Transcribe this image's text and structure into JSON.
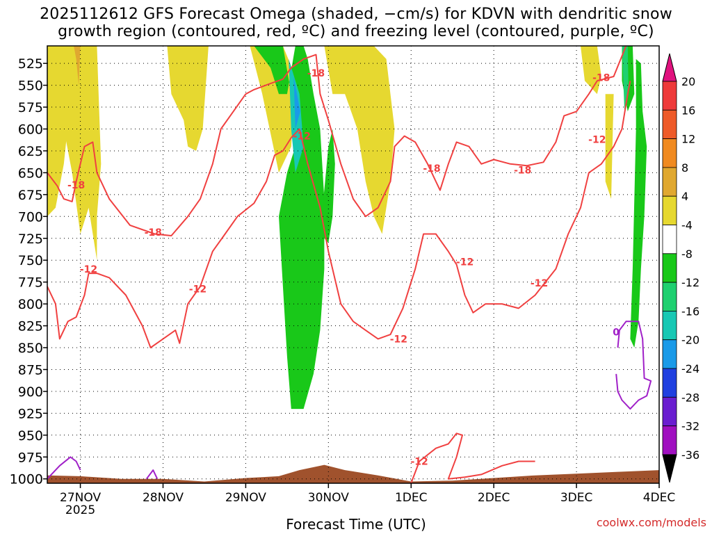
{
  "title_line1": "2025112612 GFS Forecast Omega (shaded, −cm/s) for KDVN with dendritic snow",
  "title_line2": "growth region (contoured, red, ºC) and freezing level (contoured, purple, ºC)",
  "xlabel": "Forecast Time (UTC)",
  "credit": "coolwx.com/models",
  "chart_data": {
    "type": "heatmap",
    "title": "2025112612 GFS Forecast Omega (shaded, −cm/s) for KDVN with dendritic snow growth region (contoured, red, ºC) and freezing level (contoured, purple, ºC)",
    "xlabel": "Forecast Time (UTC)",
    "ylabel": "",
    "x_ticks": [
      "27NOV",
      "28NOV",
      "29NOV",
      "30NOV",
      "1DEC",
      "2DEC",
      "3DEC",
      "4DEC"
    ],
    "x_tick_sub": [
      "2025",
      "",
      "",
      "",
      "",
      "",
      "",
      ""
    ],
    "y_ticks": [
      525,
      550,
      575,
      600,
      625,
      650,
      675,
      700,
      725,
      750,
      775,
      800,
      825,
      850,
      875,
      900,
      925,
      950,
      975,
      1000
    ],
    "ylim": [
      1005,
      505
    ],
    "xlim": [
      -0.4,
      7.0
    ],
    "grid": true,
    "colorbar": {
      "labels": [
        20,
        16,
        12,
        8,
        4,
        -4,
        -8,
        -12,
        -16,
        -20,
        -24,
        -28,
        -32,
        -36
      ],
      "colors": [
        "#e0127e",
        "#ee3a3a",
        "#ee5a28",
        "#f08a20",
        "#e0a830",
        "#e6d830",
        "#ffffff",
        "#19c819",
        "#1fd070",
        "#18c8b4",
        "#1a9ae8",
        "#2040e0",
        "#6a1ed0",
        "#a010c0",
        "#a8a8a8",
        "#000000"
      ]
    },
    "omega_regions": [
      {
        "color": "#e6d830",
        "pts": [
          [
            -0.4,
            505
          ],
          [
            -0.05,
            505
          ],
          [
            -0.2,
            640
          ],
          [
            -0.3,
            690
          ],
          [
            -0.4,
            700
          ]
        ]
      },
      {
        "color": "#e6d830",
        "pts": [
          [
            -0.25,
            505
          ],
          [
            0.2,
            505
          ],
          [
            0.25,
            640
          ],
          [
            0.2,
            700
          ],
          [
            0.2,
            750
          ],
          [
            0.1,
            690
          ],
          [
            0.0,
            720
          ],
          [
            -0.1,
            650
          ],
          [
            -0.2,
            600
          ]
        ]
      },
      {
        "color": "#e0a830",
        "pts": [
          [
            -0.08,
            505
          ],
          [
            0.0,
            505
          ],
          [
            -0.02,
            550
          ],
          [
            -0.05,
            520
          ]
        ]
      },
      {
        "color": "#e6d830",
        "pts": [
          [
            1.05,
            505
          ],
          [
            1.55,
            505
          ],
          [
            1.48,
            600
          ],
          [
            1.4,
            625
          ],
          [
            1.3,
            620
          ],
          [
            1.25,
            590
          ],
          [
            1.1,
            560
          ]
        ]
      },
      {
        "color": "#e6d830",
        "pts": [
          [
            2.05,
            505
          ],
          [
            2.45,
            505
          ],
          [
            2.6,
            540
          ],
          [
            2.55,
            620
          ],
          [
            2.4,
            650
          ],
          [
            2.2,
            560
          ]
        ]
      },
      {
        "color": "#19c819",
        "pts": [
          [
            2.1,
            505
          ],
          [
            2.45,
            505
          ],
          [
            2.55,
            560
          ],
          [
            2.6,
            620
          ],
          [
            2.5,
            650
          ],
          [
            2.4,
            700
          ],
          [
            2.45,
            780
          ],
          [
            2.5,
            860
          ],
          [
            2.55,
            920
          ],
          [
            2.7,
            920
          ],
          [
            2.82,
            880
          ],
          [
            2.9,
            830
          ],
          [
            2.95,
            760
          ],
          [
            2.95,
            680
          ],
          [
            2.9,
            600
          ],
          [
            2.82,
            560
          ],
          [
            2.75,
            520
          ],
          [
            2.7,
            505
          ],
          [
            2.6,
            505
          ],
          [
            2.5,
            560
          ],
          [
            2.4,
            560
          ],
          [
            2.3,
            530
          ]
        ]
      },
      {
        "color": "#18c8b4",
        "pts": [
          [
            2.52,
            520
          ],
          [
            2.65,
            560
          ],
          [
            2.7,
            620
          ],
          [
            2.6,
            650
          ],
          [
            2.55,
            600
          ]
        ]
      },
      {
        "color": "#1a9ae8",
        "pts": [
          [
            2.58,
            540
          ],
          [
            2.66,
            580
          ],
          [
            2.6,
            600
          ]
        ]
      },
      {
        "color": "#19c819",
        "pts": [
          [
            2.9,
            720
          ],
          [
            3.0,
            730
          ],
          [
            3.05,
            700
          ],
          [
            3.08,
            640
          ],
          [
            3.05,
            600
          ],
          [
            3.0,
            620
          ]
        ]
      },
      {
        "color": "#e6d830",
        "pts": [
          [
            2.95,
            505
          ],
          [
            3.55,
            505
          ],
          [
            3.7,
            520
          ],
          [
            3.75,
            560
          ],
          [
            3.8,
            600
          ],
          [
            3.75,
            660
          ],
          [
            3.65,
            720
          ],
          [
            3.55,
            700
          ],
          [
            3.45,
            660
          ],
          [
            3.35,
            600
          ],
          [
            3.2,
            560
          ],
          [
            3.05,
            560
          ]
        ]
      },
      {
        "color": "#e6d830",
        "pts": [
          [
            6.05,
            505
          ],
          [
            6.25,
            505
          ],
          [
            6.3,
            540
          ],
          [
            6.25,
            560
          ],
          [
            6.1,
            545
          ]
        ]
      },
      {
        "color": "#e6d830",
        "pts": [
          [
            6.35,
            560
          ],
          [
            6.45,
            560
          ],
          [
            6.42,
            680
          ],
          [
            6.35,
            660
          ]
        ]
      },
      {
        "color": "#19c819",
        "pts": [
          [
            6.55,
            505
          ],
          [
            6.68,
            505
          ],
          [
            6.7,
            560
          ],
          [
            6.62,
            580
          ],
          [
            6.55,
            545
          ]
        ]
      },
      {
        "color": "#19c819",
        "pts": [
          [
            6.72,
            520
          ],
          [
            6.78,
            525
          ],
          [
            6.8,
            580
          ],
          [
            6.85,
            620
          ],
          [
            6.82,
            700
          ],
          [
            6.78,
            760
          ],
          [
            6.75,
            820
          ],
          [
            6.7,
            850
          ],
          [
            6.65,
            840
          ],
          [
            6.68,
            760
          ],
          [
            6.7,
            680
          ],
          [
            6.72,
            600
          ]
        ]
      },
      {
        "color": "#1fd070",
        "pts": [
          [
            6.55,
            505
          ],
          [
            6.62,
            505
          ],
          [
            6.63,
            560
          ],
          [
            6.58,
            580
          ]
        ]
      }
    ],
    "dendritic_minus18": [
      [
        [
          -0.4,
          650
        ],
        [
          -0.28,
          665
        ],
        [
          -0.2,
          680
        ],
        [
          -0.1,
          683
        ],
        [
          -0.05,
          660
        ],
        [
          0.05,
          620
        ],
        [
          0.15,
          615
        ],
        [
          0.2,
          650
        ],
        [
          0.35,
          680
        ],
        [
          0.6,
          710
        ],
        [
          0.9,
          720
        ],
        [
          1.1,
          722
        ],
        [
          1.3,
          700
        ],
        [
          1.45,
          680
        ],
        [
          1.6,
          640
        ],
        [
          1.7,
          600
        ],
        [
          1.85,
          580
        ],
        [
          2.0,
          560
        ],
        [
          2.1,
          555
        ],
        [
          2.3,
          548
        ],
        [
          2.45,
          543
        ],
        [
          2.55,
          530
        ],
        [
          2.7,
          520
        ],
        [
          2.85,
          515
        ],
        [
          2.9,
          560
        ],
        [
          3.0,
          590
        ],
        [
          3.15,
          640
        ],
        [
          3.3,
          680
        ],
        [
          3.45,
          700
        ],
        [
          3.6,
          690
        ],
        [
          3.75,
          660
        ],
        [
          3.8,
          620
        ],
        [
          3.92,
          608
        ],
        [
          4.05,
          615
        ],
        [
          4.2,
          640
        ],
        [
          4.3,
          660
        ],
        [
          4.35,
          670
        ],
        [
          4.45,
          640
        ],
        [
          4.55,
          615
        ],
        [
          4.7,
          620
        ],
        [
          4.85,
          640
        ],
        [
          5.0,
          635
        ],
        [
          5.2,
          640
        ],
        [
          5.4,
          642
        ],
        [
          5.6,
          638
        ],
        [
          5.75,
          615
        ],
        [
          5.85,
          585
        ],
        [
          6.0,
          580
        ],
        [
          6.15,
          560
        ],
        [
          6.25,
          545
        ],
        [
          6.45,
          540
        ],
        [
          6.6,
          505
        ]
      ]
    ],
    "dendritic_minus12": [
      [
        [
          -0.4,
          780
        ],
        [
          -0.3,
          800
        ],
        [
          -0.25,
          840
        ],
        [
          -0.15,
          820
        ],
        [
          -0.05,
          815
        ],
        [
          0.05,
          790
        ],
        [
          0.1,
          765
        ],
        [
          0.2,
          765
        ],
        [
          0.35,
          770
        ],
        [
          0.55,
          790
        ],
        [
          0.75,
          825
        ],
        [
          0.85,
          850
        ],
        [
          1.0,
          840
        ],
        [
          1.15,
          830
        ],
        [
          1.2,
          845
        ],
        [
          1.3,
          800
        ],
        [
          1.45,
          780
        ],
        [
          1.6,
          740
        ],
        [
          1.75,
          720
        ],
        [
          1.9,
          700
        ],
        [
          2.1,
          685
        ],
        [
          2.25,
          660
        ],
        [
          2.35,
          630
        ],
        [
          2.45,
          625
        ],
        [
          2.55,
          610
        ],
        [
          2.65,
          600
        ],
        [
          2.75,
          640
        ],
        [
          2.9,
          690
        ],
        [
          3.0,
          740
        ],
        [
          3.15,
          800
        ],
        [
          3.3,
          820
        ],
        [
          3.45,
          830
        ],
        [
          3.6,
          840
        ],
        [
          3.75,
          835
        ],
        [
          3.9,
          805
        ],
        [
          4.05,
          760
        ],
        [
          4.15,
          720
        ],
        [
          4.3,
          720
        ],
        [
          4.45,
          740
        ],
        [
          4.55,
          755
        ],
        [
          4.65,
          790
        ],
        [
          4.75,
          810
        ],
        [
          4.9,
          800
        ],
        [
          5.1,
          800
        ],
        [
          5.3,
          805
        ],
        [
          5.5,
          790
        ],
        [
          5.75,
          760
        ],
        [
          5.9,
          720
        ],
        [
          6.05,
          690
        ],
        [
          6.15,
          650
        ],
        [
          6.3,
          640
        ],
        [
          6.45,
          620
        ],
        [
          6.55,
          600
        ],
        [
          6.62,
          560
        ],
        [
          6.65,
          545
        ]
      ]
    ],
    "dendritic_minus12_lower": [
      [
        [
          4.0,
          1005
        ],
        [
          4.1,
          980
        ],
        [
          4.3,
          965
        ],
        [
          4.45,
          960
        ],
        [
          4.55,
          948
        ],
        [
          4.62,
          950
        ],
        [
          4.55,
          975
        ],
        [
          4.45,
          1000
        ],
        [
          4.65,
          998
        ],
        [
          4.85,
          995
        ],
        [
          5.1,
          985
        ],
        [
          5.3,
          980
        ],
        [
          5.5,
          980
        ]
      ]
    ],
    "freezing_level": [
      [
        [
          -0.4,
          1000
        ],
        [
          -0.25,
          985
        ],
        [
          -0.12,
          975
        ],
        [
          -0.05,
          980
        ],
        [
          0.0,
          990
        ]
      ],
      [
        [
          0.8,
          1000
        ],
        [
          0.88,
          990
        ],
        [
          0.93,
          1000
        ]
      ],
      [
        [
          6.5,
          850
        ],
        [
          6.52,
          830
        ],
        [
          6.6,
          820
        ],
        [
          6.75,
          820
        ],
        [
          6.8,
          840
        ],
        [
          6.82,
          885
        ],
        [
          6.9,
          888
        ],
        [
          6.85,
          905
        ],
        [
          6.75,
          910
        ],
        [
          6.65,
          920
        ],
        [
          6.55,
          910
        ],
        [
          6.5,
          900
        ],
        [
          6.48,
          880
        ]
      ]
    ],
    "contour_labels": [
      {
        "text": "-18",
        "x": -0.05,
        "y": 664
      },
      {
        "text": "-18",
        "x": 0.88,
        "y": 718
      },
      {
        "text": "-18",
        "x": 2.85,
        "y": 536
      },
      {
        "text": "-18",
        "x": 4.25,
        "y": 645
      },
      {
        "text": "-18",
        "x": 5.35,
        "y": 647
      },
      {
        "text": "-18",
        "x": 6.3,
        "y": 541
      },
      {
        "text": "-12",
        "x": 0.1,
        "y": 760
      },
      {
        "text": "-12",
        "x": 1.42,
        "y": 783
      },
      {
        "text": "-12",
        "x": 2.68,
        "y": 608
      },
      {
        "text": "-12",
        "x": 3.85,
        "y": 840
      },
      {
        "text": "-12",
        "x": 4.65,
        "y": 752
      },
      {
        "text": "-12",
        "x": 5.55,
        "y": 776
      },
      {
        "text": "-12",
        "x": 6.25,
        "y": 612
      },
      {
        "text": "-12",
        "x": 4.1,
        "y": 980
      }
    ],
    "freezing_labels": [
      {
        "text": "0",
        "x": 6.48,
        "y": 832
      }
    ],
    "terrain": [
      [
        -0.4,
        996
      ],
      [
        0.0,
        997
      ],
      [
        0.5,
        1000
      ],
      [
        1.0,
        1000
      ],
      [
        1.5,
        1003
      ],
      [
        2.0,
        999
      ],
      [
        2.4,
        997
      ],
      [
        2.65,
        990
      ],
      [
        2.95,
        984
      ],
      [
        3.2,
        990
      ],
      [
        3.6,
        996
      ],
      [
        4.0,
        1003
      ],
      [
        4.5,
        1002
      ],
      [
        5.0,
        999
      ],
      [
        5.5,
        996
      ],
      [
        6.0,
        994
      ],
      [
        6.5,
        992
      ],
      [
        7.0,
        990
      ]
    ]
  }
}
